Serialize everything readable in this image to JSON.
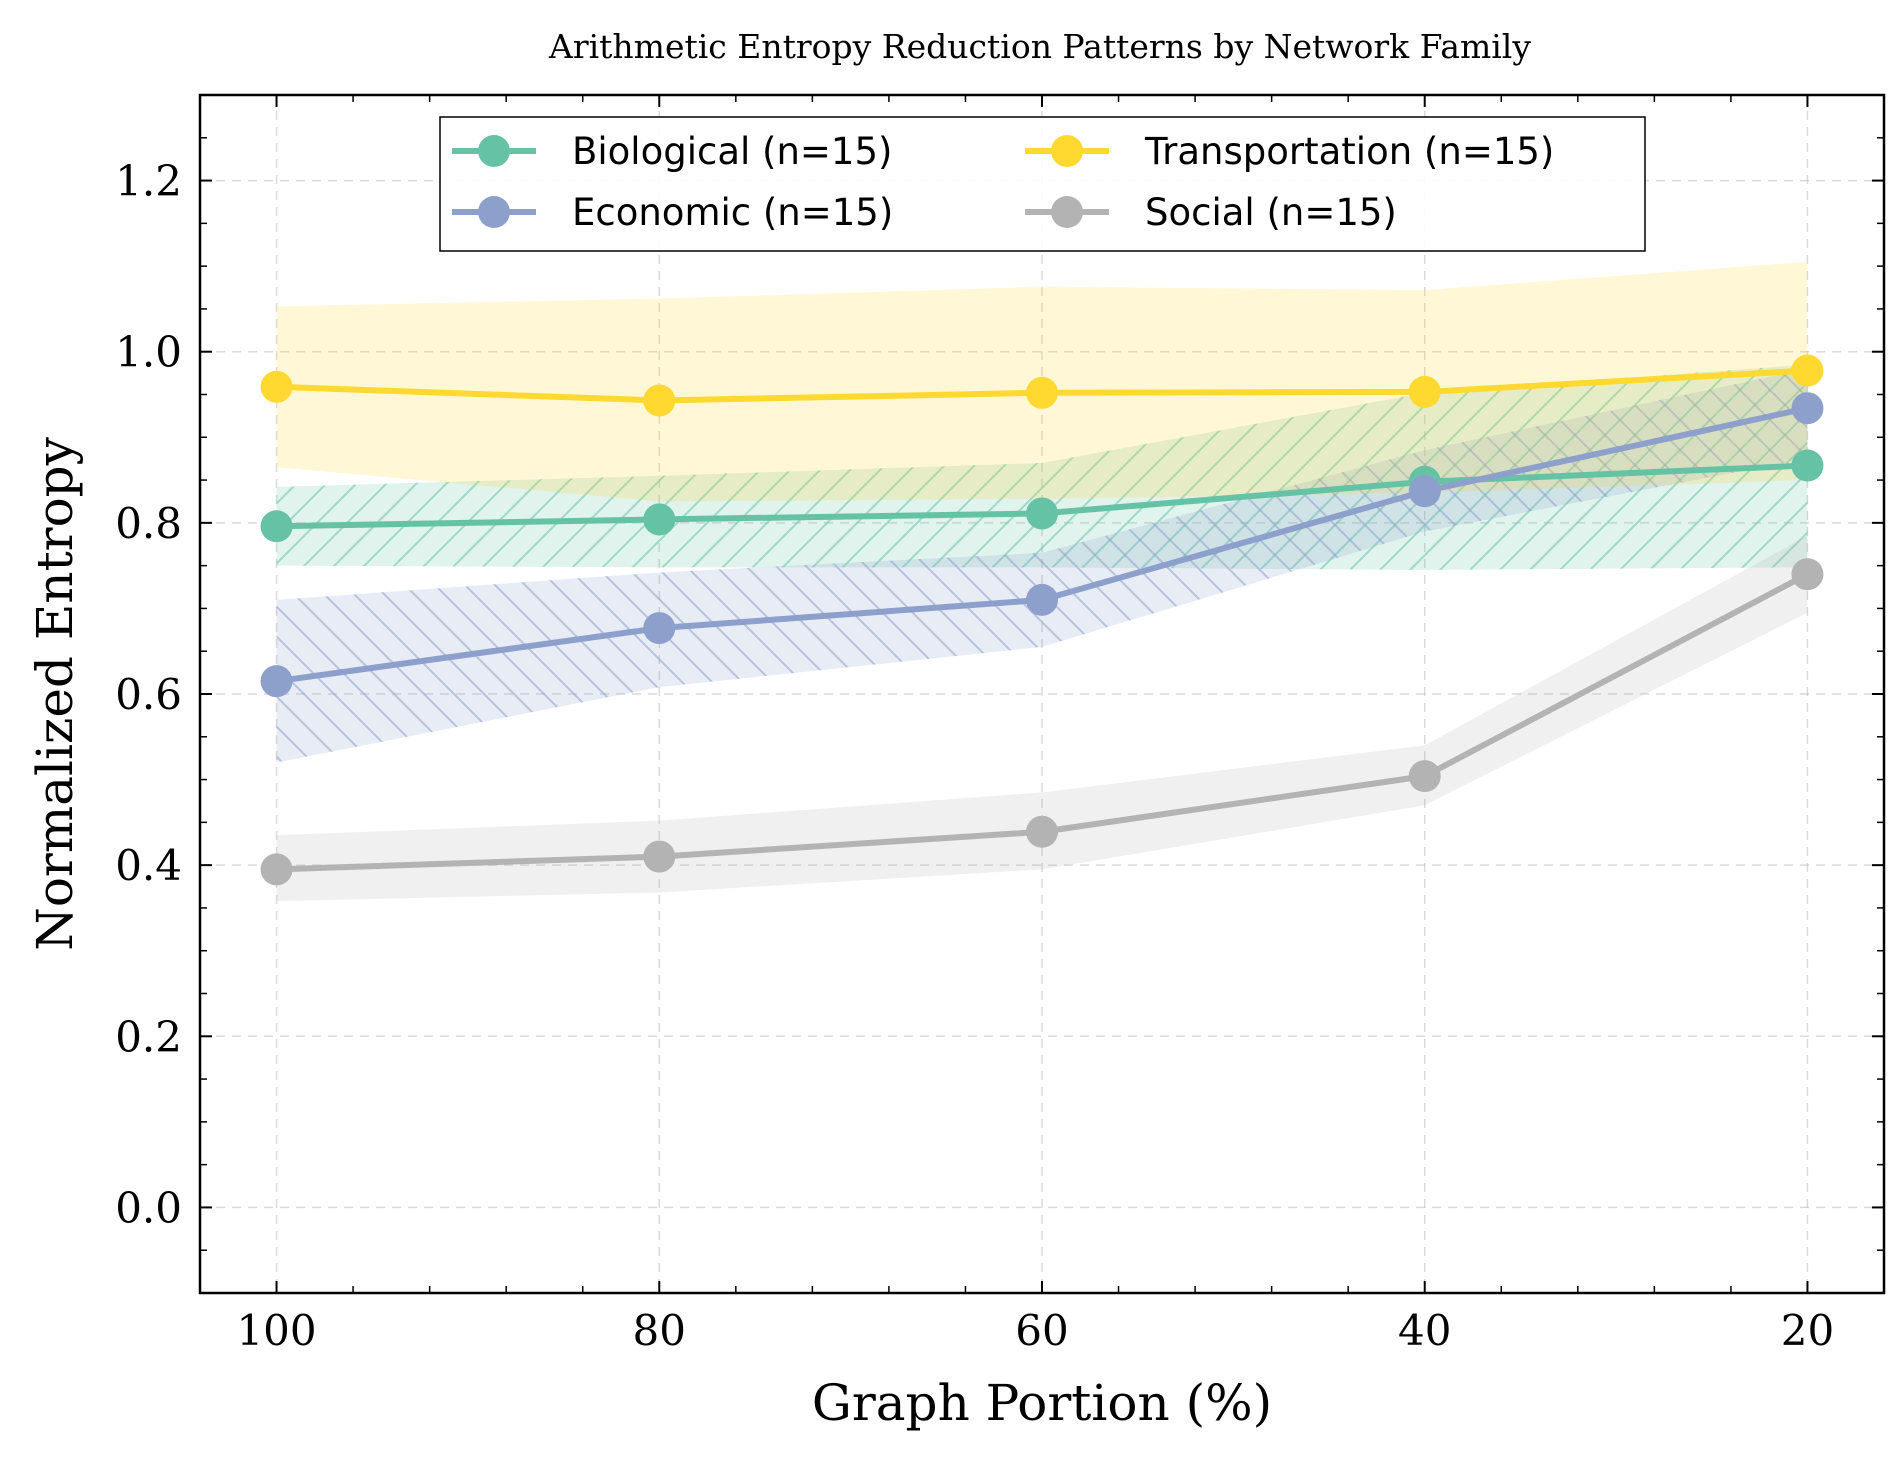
{
  "chart_data": {
    "type": "line",
    "title": "Arithmetic Entropy Reduction Patterns by Network Family",
    "xlabel": "Graph Portion (%)",
    "ylabel": "Normalized Entropy",
    "x": [
      100,
      80,
      60,
      40,
      20
    ],
    "x_ticks": [
      "100",
      "80",
      "60",
      "40",
      "20"
    ],
    "x_inverted": true,
    "xlim": [
      104,
      16
    ],
    "ylim": [
      -0.1,
      1.3
    ],
    "y_ticks": [
      "0.0",
      "0.2",
      "0.4",
      "0.6",
      "0.8",
      "1.0",
      "1.2"
    ],
    "grid": true,
    "legend_position": "top-center",
    "series": [
      {
        "name": "Biological (n=15)",
        "color": "#66c2a5",
        "values": [
          0.796,
          0.804,
          0.811,
          0.848,
          0.867
        ],
        "lower": [
          0.75,
          0.748,
          0.748,
          0.745,
          0.748
        ],
        "upper": [
          0.842,
          0.855,
          0.87,
          0.952,
          0.985
        ],
        "hatch": "diagonal-up"
      },
      {
        "name": "Economic (n=15)",
        "color": "#8da0cb",
        "values": [
          0.615,
          0.677,
          0.71,
          0.837,
          0.934
        ],
        "lower": [
          0.52,
          0.608,
          0.655,
          0.79,
          0.875
        ],
        "upper": [
          0.71,
          0.742,
          0.765,
          0.885,
          0.98
        ],
        "hatch": "diagonal-down"
      },
      {
        "name": "Transportation (n=15)",
        "color": "#ffd92f",
        "values": [
          0.959,
          0.943,
          0.952,
          0.953,
          0.978
        ],
        "lower": [
          0.865,
          0.825,
          0.828,
          0.835,
          0.85
        ],
        "upper": [
          1.053,
          1.062,
          1.076,
          1.072,
          1.105
        ],
        "hatch": "none"
      },
      {
        "name": "Social (n=15)",
        "color": "#b3b3b3",
        "values": [
          0.395,
          0.41,
          0.439,
          0.504,
          0.74
        ],
        "lower": [
          0.358,
          0.368,
          0.395,
          0.47,
          0.695
        ],
        "upper": [
          0.435,
          0.452,
          0.485,
          0.54,
          0.785
        ],
        "hatch": "none"
      }
    ]
  }
}
